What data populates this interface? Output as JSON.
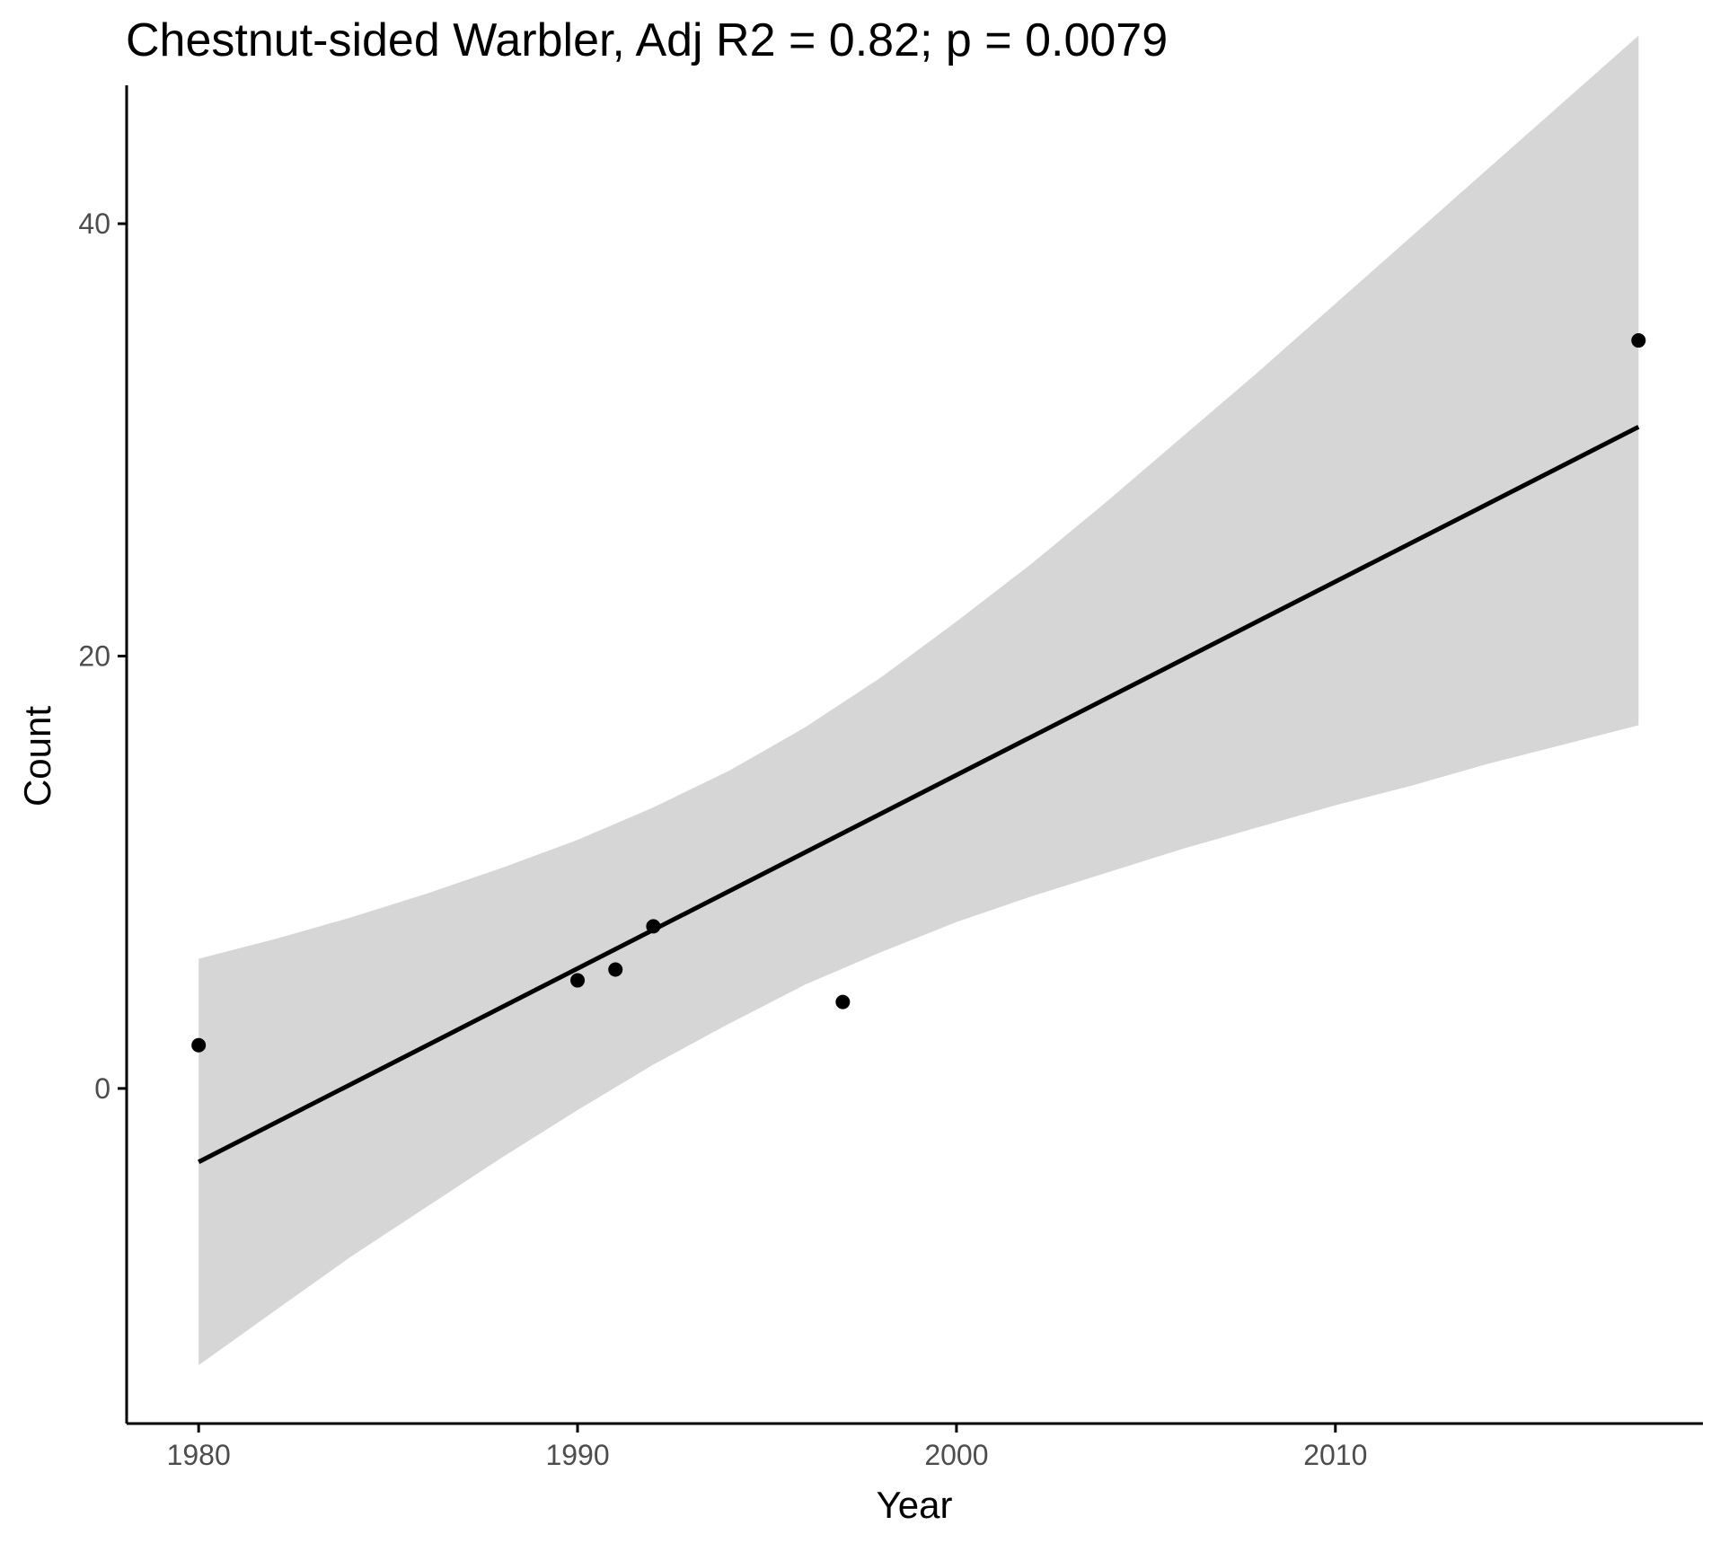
{
  "chart_data": {
    "type": "scatter",
    "title": "Chestnut-sided Warbler, Adj R2 = 0.82; p = 0.0079",
    "xlabel": "Year",
    "ylabel": "Count",
    "xlim": [
      1978.1,
      2019.7
    ],
    "ylim": [
      -15.5,
      46.4
    ],
    "x_ticks": [
      1980,
      1990,
      2000,
      2010
    ],
    "x_tick_labels": [
      "1980",
      "1990",
      "2000",
      "2010"
    ],
    "y_ticks": [
      0,
      20,
      40
    ],
    "y_tick_labels": [
      "0",
      "20",
      "40"
    ],
    "grid": false,
    "legend": false,
    "points": [
      {
        "x": 1980,
        "y": 2
      },
      {
        "x": 1990,
        "y": 5
      },
      {
        "x": 1991,
        "y": 5.5
      },
      {
        "x": 1992,
        "y": 7.5
      },
      {
        "x": 1997,
        "y": 4
      },
      {
        "x": 2018,
        "y": 34.6
      }
    ],
    "trend_line": {
      "x": [
        1980,
        2018
      ],
      "y": [
        -3.4,
        30.6
      ]
    },
    "confidence_band": {
      "x": [
        1980,
        1982,
        1984,
        1986,
        1988,
        1990,
        1992,
        1994,
        1996,
        1998,
        2000,
        2002,
        2004,
        2006,
        2008,
        2010,
        2012,
        2014,
        2016,
        2018
      ],
      "upper": [
        6.0,
        6.9,
        7.9,
        9.0,
        10.2,
        11.5,
        13.0,
        14.7,
        16.7,
        19.0,
        21.6,
        24.3,
        27.2,
        30.2,
        33.2,
        36.3,
        39.4,
        42.5,
        45.6,
        48.7
      ],
      "lower": [
        -12.8,
        -10.3,
        -7.8,
        -5.5,
        -3.2,
        -1.0,
        1.1,
        3.0,
        4.8,
        6.3,
        7.7,
        8.9,
        10.0,
        11.1,
        12.1,
        13.1,
        14.0,
        15.0,
        15.9,
        16.8
      ]
    },
    "colors": {
      "points": "#000000",
      "trend_line": "#000000",
      "band": "#d6d6d6",
      "axis": "#000000",
      "tick_label": "#4d4d4d"
    }
  }
}
